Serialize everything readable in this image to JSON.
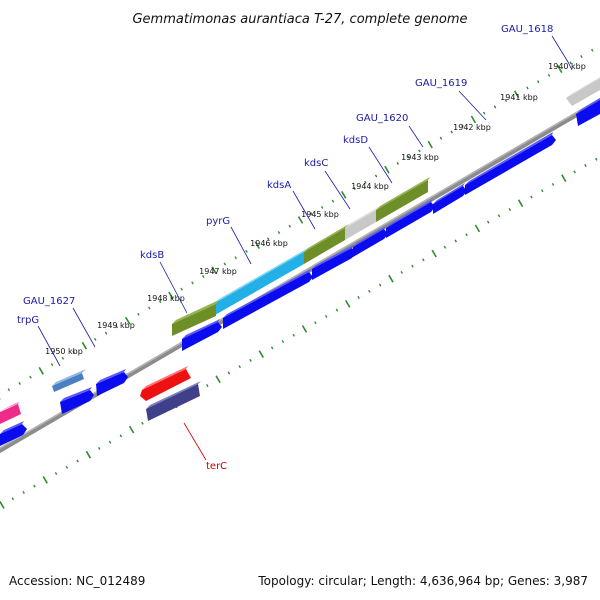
{
  "title": "Gemmatimonas aurantiaca T-27, complete genome",
  "footer": {
    "accession": "Accession: NC_012489",
    "summary": "Topology: circular; Length: 4,636,964 bp; Genes: 3,987"
  },
  "colors": {
    "backbone": "#8c8c8c",
    "tick": "#2e8b2e",
    "gene_blue": "#0b0bf0",
    "gene_olive": "#6e8f28",
    "gene_cyan": "#22b0e6",
    "gene_gray": "#c8c8c8",
    "gene_red": "#ee1111",
    "gene_navy": "#3f3f8a",
    "gene_pink": "#ee2a8a",
    "gene_steel": "#4a7fc0",
    "label_blue": "#1a1aa8",
    "label_red": "#cc0000"
  },
  "position_scale": {
    "kbp": [
      1940,
      1941,
      1942,
      1943,
      1944,
      1945,
      1946,
      1947,
      1948,
      1949,
      1950
    ],
    "labels": [
      "1940 kbp",
      "1941 kbp",
      "1942 kbp",
      "1943 kbp",
      "1944 kbp",
      "1945 kbp",
      "1946 kbp",
      "1947 kbp",
      "1948 kbp",
      "1949 kbp",
      "1950 kbp"
    ]
  },
  "gene_labels": [
    {
      "name": "GAU_1618",
      "color": "label_blue"
    },
    {
      "name": "GAU_1619",
      "color": "label_blue"
    },
    {
      "name": "GAU_1620",
      "color": "label_blue"
    },
    {
      "name": "kdsD",
      "color": "label_blue"
    },
    {
      "name": "kdsC",
      "color": "label_blue"
    },
    {
      "name": "kdsA",
      "color": "label_blue"
    },
    {
      "name": "pyrG",
      "color": "label_blue"
    },
    {
      "name": "kdsB",
      "color": "label_blue"
    },
    {
      "name": "GAU_1627",
      "color": "label_blue"
    },
    {
      "name": "trpG",
      "color": "label_blue"
    },
    {
      "name": "terC",
      "color": "label_red"
    }
  ]
}
